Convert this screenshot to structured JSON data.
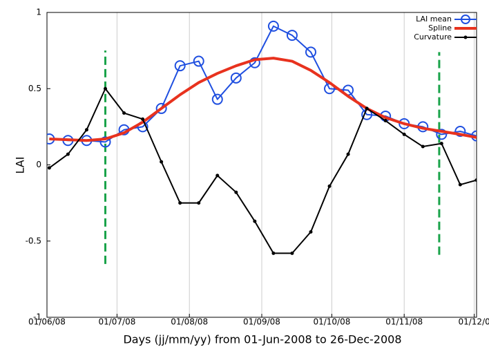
{
  "chart_data": {
    "type": "line",
    "xlabel": "Days (jj/mm/yy)  from 01-Jun-2008 to 26-Dec-2008",
    "ylabel": "LAI",
    "x": [
      1,
      9,
      17,
      25,
      33,
      41,
      49,
      57,
      65,
      73,
      81,
      89,
      97,
      105,
      113,
      121,
      129,
      137,
      145,
      153,
      161,
      169,
      177,
      184
    ],
    "series": [
      {
        "name": "LAI mean",
        "color": "#1f4fe0",
        "marker": "circle",
        "values": [
          0.17,
          0.16,
          0.16,
          0.15,
          0.23,
          0.25,
          0.37,
          0.65,
          0.68,
          0.43,
          0.57,
          0.67,
          0.91,
          0.85,
          0.74,
          0.5,
          0.49,
          0.33,
          0.32,
          0.27,
          0.25,
          0.2,
          0.22,
          0.19
        ]
      },
      {
        "name": "Spline",
        "color": "#e8321e",
        "marker": "none",
        "values": [
          0.17,
          0.165,
          0.16,
          0.17,
          0.21,
          0.28,
          0.37,
          0.46,
          0.54,
          0.6,
          0.65,
          0.69,
          0.7,
          0.68,
          0.62,
          0.54,
          0.45,
          0.37,
          0.31,
          0.27,
          0.24,
          0.22,
          0.2,
          0.18
        ]
      },
      {
        "name": "Curvature",
        "color": "#000000",
        "marker": "dot",
        "values": [
          -0.02,
          0.07,
          0.23,
          0.5,
          0.34,
          0.3,
          0.02,
          -0.25,
          -0.25,
          -0.07,
          -0.18,
          -0.37,
          -0.58,
          -0.58,
          -0.44,
          -0.14,
          0.07,
          0.37,
          0.29,
          0.2,
          0.12,
          0.14,
          -0.13,
          -0.1
        ]
      }
    ],
    "vlines": [
      {
        "x": 25,
        "ymin": -0.65,
        "ymax": 0.75
      },
      {
        "x": 168,
        "ymin": -0.59,
        "ymax": 0.74
      }
    ],
    "vline_color": "#1aa34a",
    "xlim": [
      0,
      184
    ],
    "xticks": [
      {
        "value": 0,
        "label": "01/06/08"
      },
      {
        "value": 30,
        "label": "01/07/08"
      },
      {
        "value": 61,
        "label": "01/08/08"
      },
      {
        "value": 92,
        "label": "01/09/08"
      },
      {
        "value": 122,
        "label": "01/10/08"
      },
      {
        "value": 153,
        "label": "01/11/08"
      },
      {
        "value": 183,
        "label": "01/12/0"
      }
    ],
    "ylim": [
      -1,
      1
    ],
    "yticks": [
      -1,
      -0.5,
      0,
      0.5,
      1
    ],
    "grid": "x",
    "legend": "upper right"
  }
}
